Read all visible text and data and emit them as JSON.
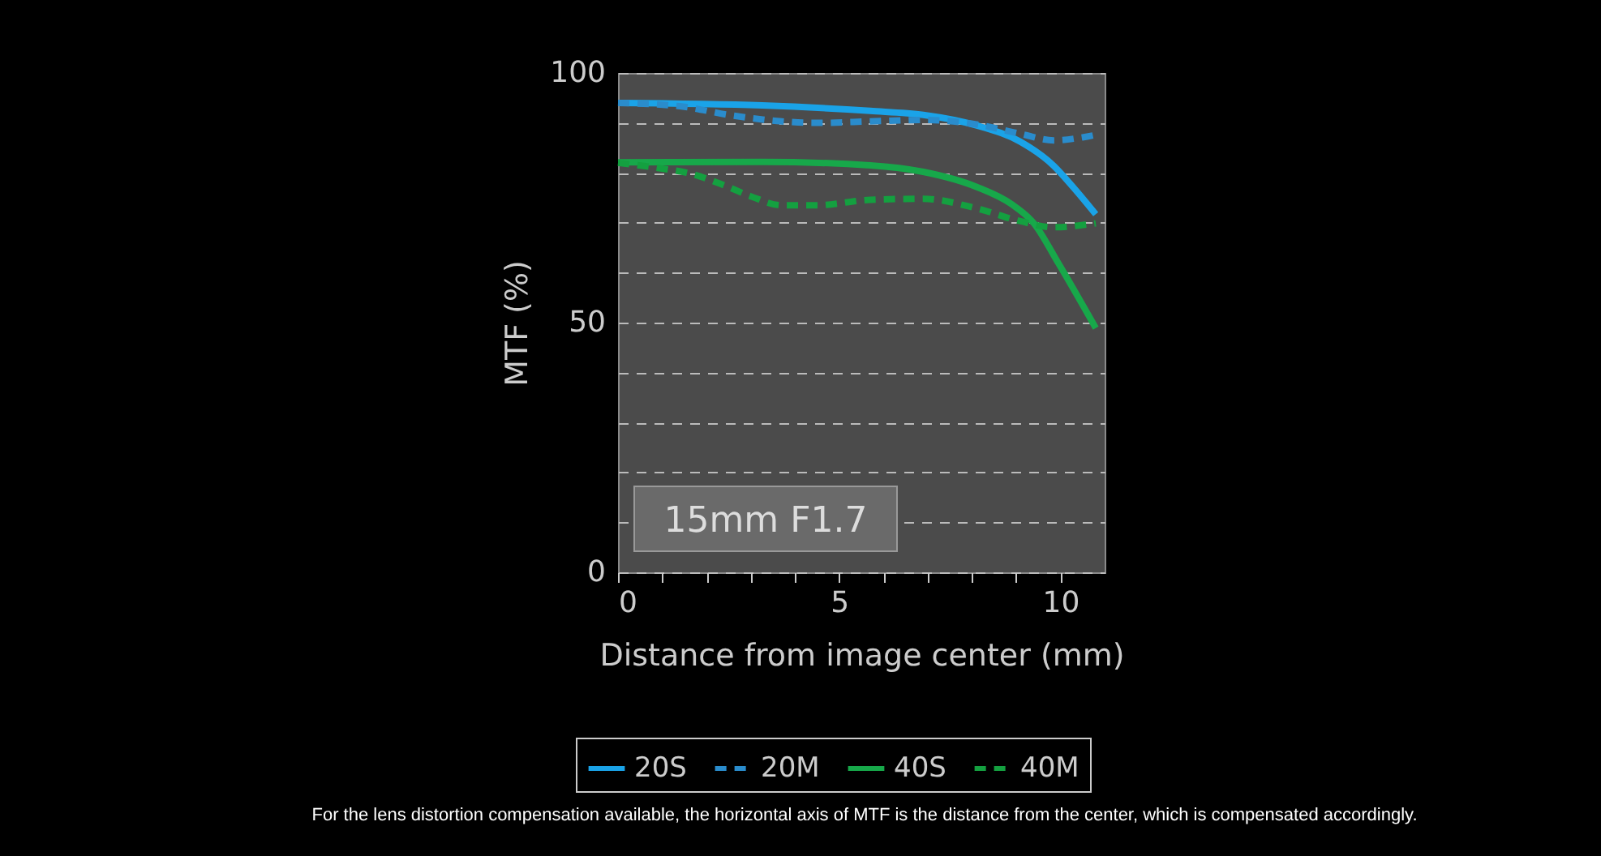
{
  "chart_data": {
    "type": "line",
    "xlabel": "Distance from image center (mm)",
    "ylabel": "MTF (%)",
    "xlim": [
      0,
      11
    ],
    "ylim": [
      0,
      100
    ],
    "xticks": [
      0,
      {
        "value": 1,
        "label": null
      },
      {
        "value": 2,
        "label": null
      },
      {
        "value": 3,
        "label": null
      },
      {
        "value": 4,
        "label": null
      },
      5,
      {
        "value": 6,
        "label": null
      },
      {
        "value": 7,
        "label": null
      },
      {
        "value": 8,
        "label": null
      },
      {
        "value": 9,
        "label": null
      },
      10
    ],
    "yticks": [
      0,
      {
        "value": 10,
        "label": null
      },
      {
        "value": 20,
        "label": null
      },
      {
        "value": 30,
        "label": null
      },
      {
        "value": 40,
        "label": null
      },
      50,
      {
        "value": 60,
        "label": null
      },
      {
        "value": 70,
        "label": null
      },
      {
        "value": 80,
        "label": null
      },
      {
        "value": 90,
        "label": null
      },
      100
    ],
    "grid": "y",
    "legend": "bottom",
    "marker": "none",
    "annotations": [
      "15mm F1.7",
      "For the lens distortion compensation available, the horizontal axis of MTF is the distance from the center, which is compensated accordingly."
    ],
    "series": [
      {
        "name": "20S",
        "color": "#1aa3e8",
        "line_style": "solid",
        "x": [
          0,
          3.26,
          5.7,
          6.9,
          8.1,
          9.1,
          9.85,
          10.3,
          10.8
        ],
        "values": [
          94,
          93.5,
          92.4,
          91.6,
          89.5,
          86.2,
          81.4,
          77,
          71.7
        ]
      },
      {
        "name": "20M",
        "color": "#2a8ccc",
        "line_style": "dashed",
        "x": [
          0,
          1.43,
          2.5,
          3.7,
          4.5,
          5.7,
          6.9,
          8.1,
          9.1,
          9.85,
          10.5,
          10.8
        ],
        "values": [
          94,
          93.3,
          91.6,
          90.3,
          90,
          90.3,
          90.6,
          89.7,
          87.8,
          86.5,
          87.1,
          87.6
        ]
      },
      {
        "name": "40S",
        "color": "#17a84a",
        "line_style": "solid",
        "x": [
          0,
          3.26,
          5.7,
          6.9,
          8.1,
          8.9,
          9.4,
          9.96,
          10.8
        ],
        "values": [
          82.1,
          82.2,
          81.5,
          80.2,
          77.2,
          73.7,
          69.9,
          61.8,
          48.9
        ]
      },
      {
        "name": "40M",
        "color": "#14a040",
        "line_style": "dashed",
        "x": [
          0,
          0.8,
          1.7,
          2.4,
          3.0,
          3.7,
          4.5,
          5.7,
          6.9,
          8.1,
          9.1,
          9.85,
          10.8
        ],
        "values": [
          82,
          81.1,
          79.7,
          77.5,
          75.3,
          73.5,
          73.5,
          74.6,
          74.8,
          72.9,
          70.3,
          69.1,
          69.9
        ]
      }
    ]
  }
}
